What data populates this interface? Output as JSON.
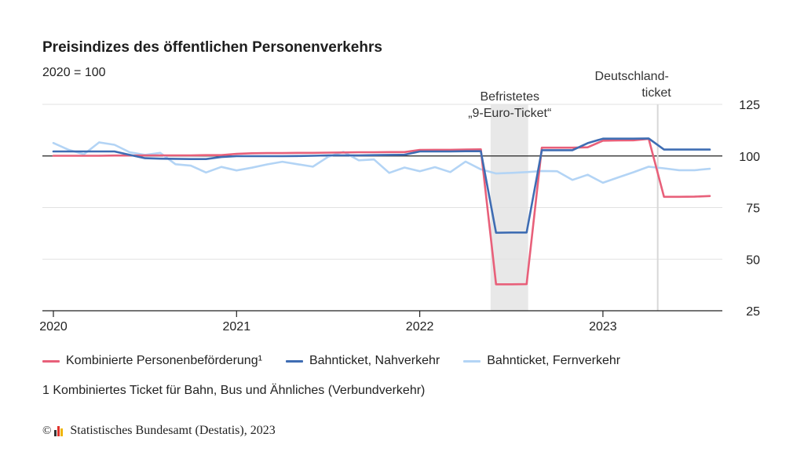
{
  "header": {
    "title": "Preisindizes des öffentlichen Personenverkehrs",
    "subtitle": "2020 = 100"
  },
  "legend": [
    {
      "label": "Kombinierte Personenbeförderung¹",
      "color": "#e8607a"
    },
    {
      "label": "Bahnticket, Nahverkehr",
      "color": "#3f6db3"
    },
    {
      "label": "Bahnticket, Fernverkehr",
      "color": "#b3d4f5"
    }
  ],
  "footnote": "1 Kombiniertes Ticket für Bahn, Bus und Ähnliches (Verbundverkehr)",
  "source": {
    "copyright_symbol": "©",
    "text": "Statistisches Bundesamt (Destatis), 2023",
    "logo_icon": "destatis-logo-icon"
  },
  "chart_data": {
    "type": "line",
    "title": "Preisindizes des öffentlichen Personenverkehrs",
    "subtitle": "2020 = 100",
    "x_start": "2020-01",
    "x_end": "2023-08",
    "x_tick_labels": [
      "2020",
      "2021",
      "2022",
      "2023"
    ],
    "y_ticks": [
      25,
      50,
      75,
      100,
      125
    ],
    "ylim": [
      25,
      125
    ],
    "reference_line": 100,
    "grid": true,
    "annotations": [
      {
        "lines": [
          "Befristetes",
          "„9-Euro-Ticket“"
        ],
        "from": "2022-06",
        "to": "2022-08",
        "kind": "band"
      },
      {
        "lines": [
          "Deutschland-",
          "ticket"
        ],
        "at": "2023-05",
        "kind": "line"
      }
    ],
    "x": [
      "2020-01",
      "2020-02",
      "2020-03",
      "2020-04",
      "2020-05",
      "2020-06",
      "2020-07",
      "2020-08",
      "2020-09",
      "2020-10",
      "2020-11",
      "2020-12",
      "2021-01",
      "2021-02",
      "2021-03",
      "2021-04",
      "2021-05",
      "2021-06",
      "2021-07",
      "2021-08",
      "2021-09",
      "2021-10",
      "2021-11",
      "2021-12",
      "2022-01",
      "2022-02",
      "2022-03",
      "2022-04",
      "2022-05",
      "2022-06",
      "2022-07",
      "2022-08",
      "2022-09",
      "2022-10",
      "2022-11",
      "2022-12",
      "2023-01",
      "2023-02",
      "2023-03",
      "2023-04",
      "2023-05",
      "2023-06",
      "2023-07",
      "2023-08"
    ],
    "series": [
      {
        "name": "Kombinierte Personenbeförderung¹",
        "color": "#e8607a",
        "values": [
          100.1,
          100.1,
          100.1,
          100.1,
          100.2,
          100.2,
          100.3,
          100.3,
          100.3,
          100.3,
          100.4,
          100.4,
          101.0,
          101.3,
          101.4,
          101.4,
          101.5,
          101.5,
          101.6,
          101.7,
          101.8,
          101.8,
          101.9,
          101.9,
          102.9,
          103.0,
          103.0,
          103.1,
          103.2,
          37.8,
          37.8,
          37.9,
          104.0,
          104.0,
          104.0,
          104.2,
          107.4,
          107.5,
          107.6,
          108.3,
          80.2,
          80.2,
          80.3,
          80.6
        ]
      },
      {
        "name": "Bahnticket, Nahverkehr",
        "color": "#3f6db3",
        "values": [
          102.2,
          102.2,
          102.2,
          102.2,
          102.2,
          100.5,
          98.9,
          98.7,
          98.6,
          98.5,
          98.5,
          99.5,
          99.9,
          99.9,
          99.9,
          99.9,
          100.0,
          100.1,
          100.3,
          100.3,
          100.3,
          100.4,
          100.5,
          100.6,
          102.2,
          102.2,
          102.2,
          102.3,
          102.3,
          62.8,
          62.9,
          62.9,
          102.8,
          102.8,
          102.8,
          106.2,
          108.4,
          108.4,
          108.4,
          108.5,
          103.1,
          103.1,
          103.1,
          103.1
        ]
      },
      {
        "name": "Bahnticket, Fernverkehr",
        "color": "#b3d4f5",
        "values": [
          106.3,
          103.0,
          100.8,
          106.6,
          105.4,
          101.8,
          100.5,
          101.5,
          96.0,
          95.3,
          92.0,
          94.7,
          93.0,
          94.3,
          95.9,
          97.2,
          96.0,
          94.8,
          99.6,
          102.0,
          97.9,
          98.3,
          91.8,
          94.4,
          92.6,
          94.6,
          92.2,
          97.3,
          93.5,
          91.5,
          91.8,
          92.2,
          92.7,
          92.6,
          88.4,
          90.9,
          87.0,
          89.6,
          92.1,
          94.8,
          94.0,
          93.1,
          93.1,
          93.8
        ]
      }
    ]
  }
}
